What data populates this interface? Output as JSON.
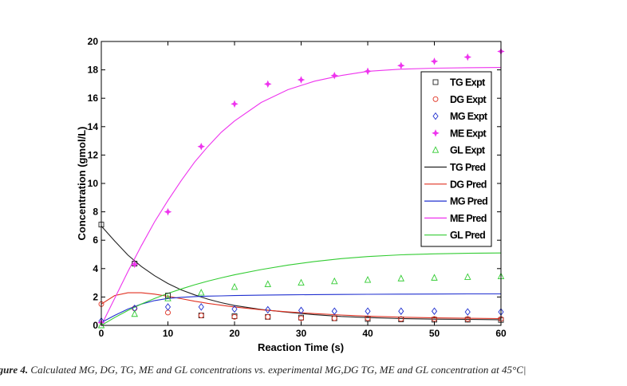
{
  "caption": {
    "prefix": "igure 4.",
    "text": "Calculated MG, DG, TG, ME and GL concentrations vs. experimental MG,DG TG, ME and GL concentration  at 45°C|"
  },
  "chart_data": {
    "type": "scatter",
    "xlabel": "Reaction Time (s)",
    "ylabel": "Concentration (gmol/L)",
    "xlim": [
      0,
      60
    ],
    "ylim": [
      0,
      20
    ],
    "xticks": [
      0,
      10,
      20,
      30,
      40,
      50,
      60
    ],
    "yticks": [
      0,
      2,
      4,
      6,
      8,
      10,
      12,
      14,
      16,
      18,
      20
    ],
    "grid": false,
    "legend_position": "top-right",
    "colors": {
      "TG": "#222222",
      "DG": "#e03020",
      "MG": "#2030d0",
      "ME": "#ee33ee",
      "GL": "#33cc33"
    },
    "experimental": [
      {
        "name": "TG Expt",
        "marker": "square",
        "color": "#222222",
        "x": [
          0,
          5,
          10,
          15,
          20,
          25,
          30,
          35,
          40,
          45,
          50,
          55,
          60
        ],
        "y": [
          7.1,
          4.35,
          2.1,
          0.7,
          0.65,
          0.6,
          0.55,
          0.5,
          0.45,
          0.42,
          0.4,
          0.4,
          0.38
        ]
      },
      {
        "name": "DG Expt",
        "marker": "circle",
        "color": "#e03020",
        "x": [
          0,
          5,
          10,
          15,
          20,
          25,
          30,
          35,
          40,
          45,
          50,
          55,
          60
        ],
        "y": [
          1.5,
          1.2,
          0.9,
          0.7,
          0.6,
          0.6,
          0.5,
          0.5,
          0.5,
          0.45,
          0.45,
          0.45,
          0.45
        ]
      },
      {
        "name": "MG Expt",
        "marker": "diamond",
        "color": "#2030d0",
        "x": [
          0,
          5,
          10,
          15,
          20,
          25,
          30,
          35,
          40,
          45,
          50,
          55,
          60
        ],
        "y": [
          0.3,
          1.2,
          1.3,
          1.3,
          1.15,
          1.1,
          1.05,
          1.0,
          1.0,
          1.0,
          1.0,
          0.95,
          0.95
        ]
      },
      {
        "name": "ME Expt",
        "marker": "star",
        "color": "#ee33ee",
        "x": [
          0,
          5,
          10,
          15,
          20,
          25,
          30,
          35,
          40,
          45,
          50,
          55,
          60
        ],
        "y": [
          0.2,
          4.3,
          8.0,
          12.6,
          15.6,
          17.0,
          17.3,
          17.6,
          17.9,
          18.3,
          18.6,
          18.9,
          19.3
        ]
      },
      {
        "name": "GL Expt",
        "marker": "triangle",
        "color": "#33cc33",
        "x": [
          0,
          5,
          10,
          15,
          20,
          25,
          30,
          35,
          40,
          45,
          50,
          55,
          60
        ],
        "y": [
          0.0,
          0.8,
          1.9,
          2.3,
          2.7,
          2.9,
          3.0,
          3.1,
          3.2,
          3.3,
          3.35,
          3.4,
          3.45
        ]
      }
    ],
    "predicted": [
      {
        "name": "TG Pred",
        "color": "#222222",
        "x": [
          0,
          2,
          4,
          6,
          8,
          10,
          12,
          14,
          16,
          18,
          20,
          24,
          28,
          32,
          36,
          40,
          45,
          50,
          55,
          60
        ],
        "y": [
          7.0,
          5.95,
          4.95,
          4.15,
          3.5,
          2.95,
          2.5,
          2.15,
          1.85,
          1.6,
          1.4,
          1.12,
          0.92,
          0.75,
          0.63,
          0.55,
          0.48,
          0.44,
          0.42,
          0.4
        ]
      },
      {
        "name": "DG Pred",
        "color": "#e03020",
        "x": [
          0,
          2,
          4,
          6,
          8,
          10,
          12,
          14,
          16,
          18,
          20,
          24,
          28,
          32,
          36,
          40,
          45,
          50,
          55,
          60
        ],
        "y": [
          1.5,
          2.1,
          2.3,
          2.3,
          2.2,
          2.05,
          1.88,
          1.7,
          1.55,
          1.42,
          1.3,
          1.1,
          0.95,
          0.83,
          0.73,
          0.65,
          0.58,
          0.53,
          0.5,
          0.48
        ]
      },
      {
        "name": "MG Pred",
        "color": "#2030d0",
        "x": [
          0,
          2,
          4,
          6,
          8,
          10,
          12,
          14,
          16,
          18,
          20,
          24,
          28,
          32,
          36,
          40,
          45,
          50,
          55,
          60
        ],
        "y": [
          0.2,
          0.7,
          1.15,
          1.5,
          1.75,
          1.9,
          1.98,
          2.03,
          2.06,
          2.08,
          2.1,
          2.13,
          2.15,
          2.17,
          2.18,
          2.19,
          2.2,
          2.21,
          2.22,
          2.22
        ]
      },
      {
        "name": "ME Pred",
        "color": "#ee33ee",
        "x": [
          0,
          2,
          4,
          6,
          8,
          10,
          12,
          14,
          16,
          18,
          20,
          24,
          28,
          32,
          36,
          40,
          45,
          50,
          55,
          60
        ],
        "y": [
          0.0,
          1.9,
          3.8,
          5.6,
          7.3,
          8.8,
          10.2,
          11.5,
          12.6,
          13.6,
          14.4,
          15.7,
          16.6,
          17.2,
          17.6,
          17.9,
          18.05,
          18.12,
          18.15,
          18.17
        ]
      },
      {
        "name": "GL Pred",
        "color": "#33cc33",
        "x": [
          0,
          2,
          4,
          6,
          8,
          10,
          12,
          14,
          16,
          18,
          20,
          24,
          28,
          32,
          36,
          40,
          45,
          50,
          55,
          60
        ],
        "y": [
          0.0,
          0.55,
          1.05,
          1.5,
          1.9,
          2.25,
          2.57,
          2.86,
          3.12,
          3.35,
          3.56,
          3.93,
          4.25,
          4.5,
          4.7,
          4.85,
          4.97,
          5.04,
          5.08,
          5.1
        ]
      }
    ]
  }
}
